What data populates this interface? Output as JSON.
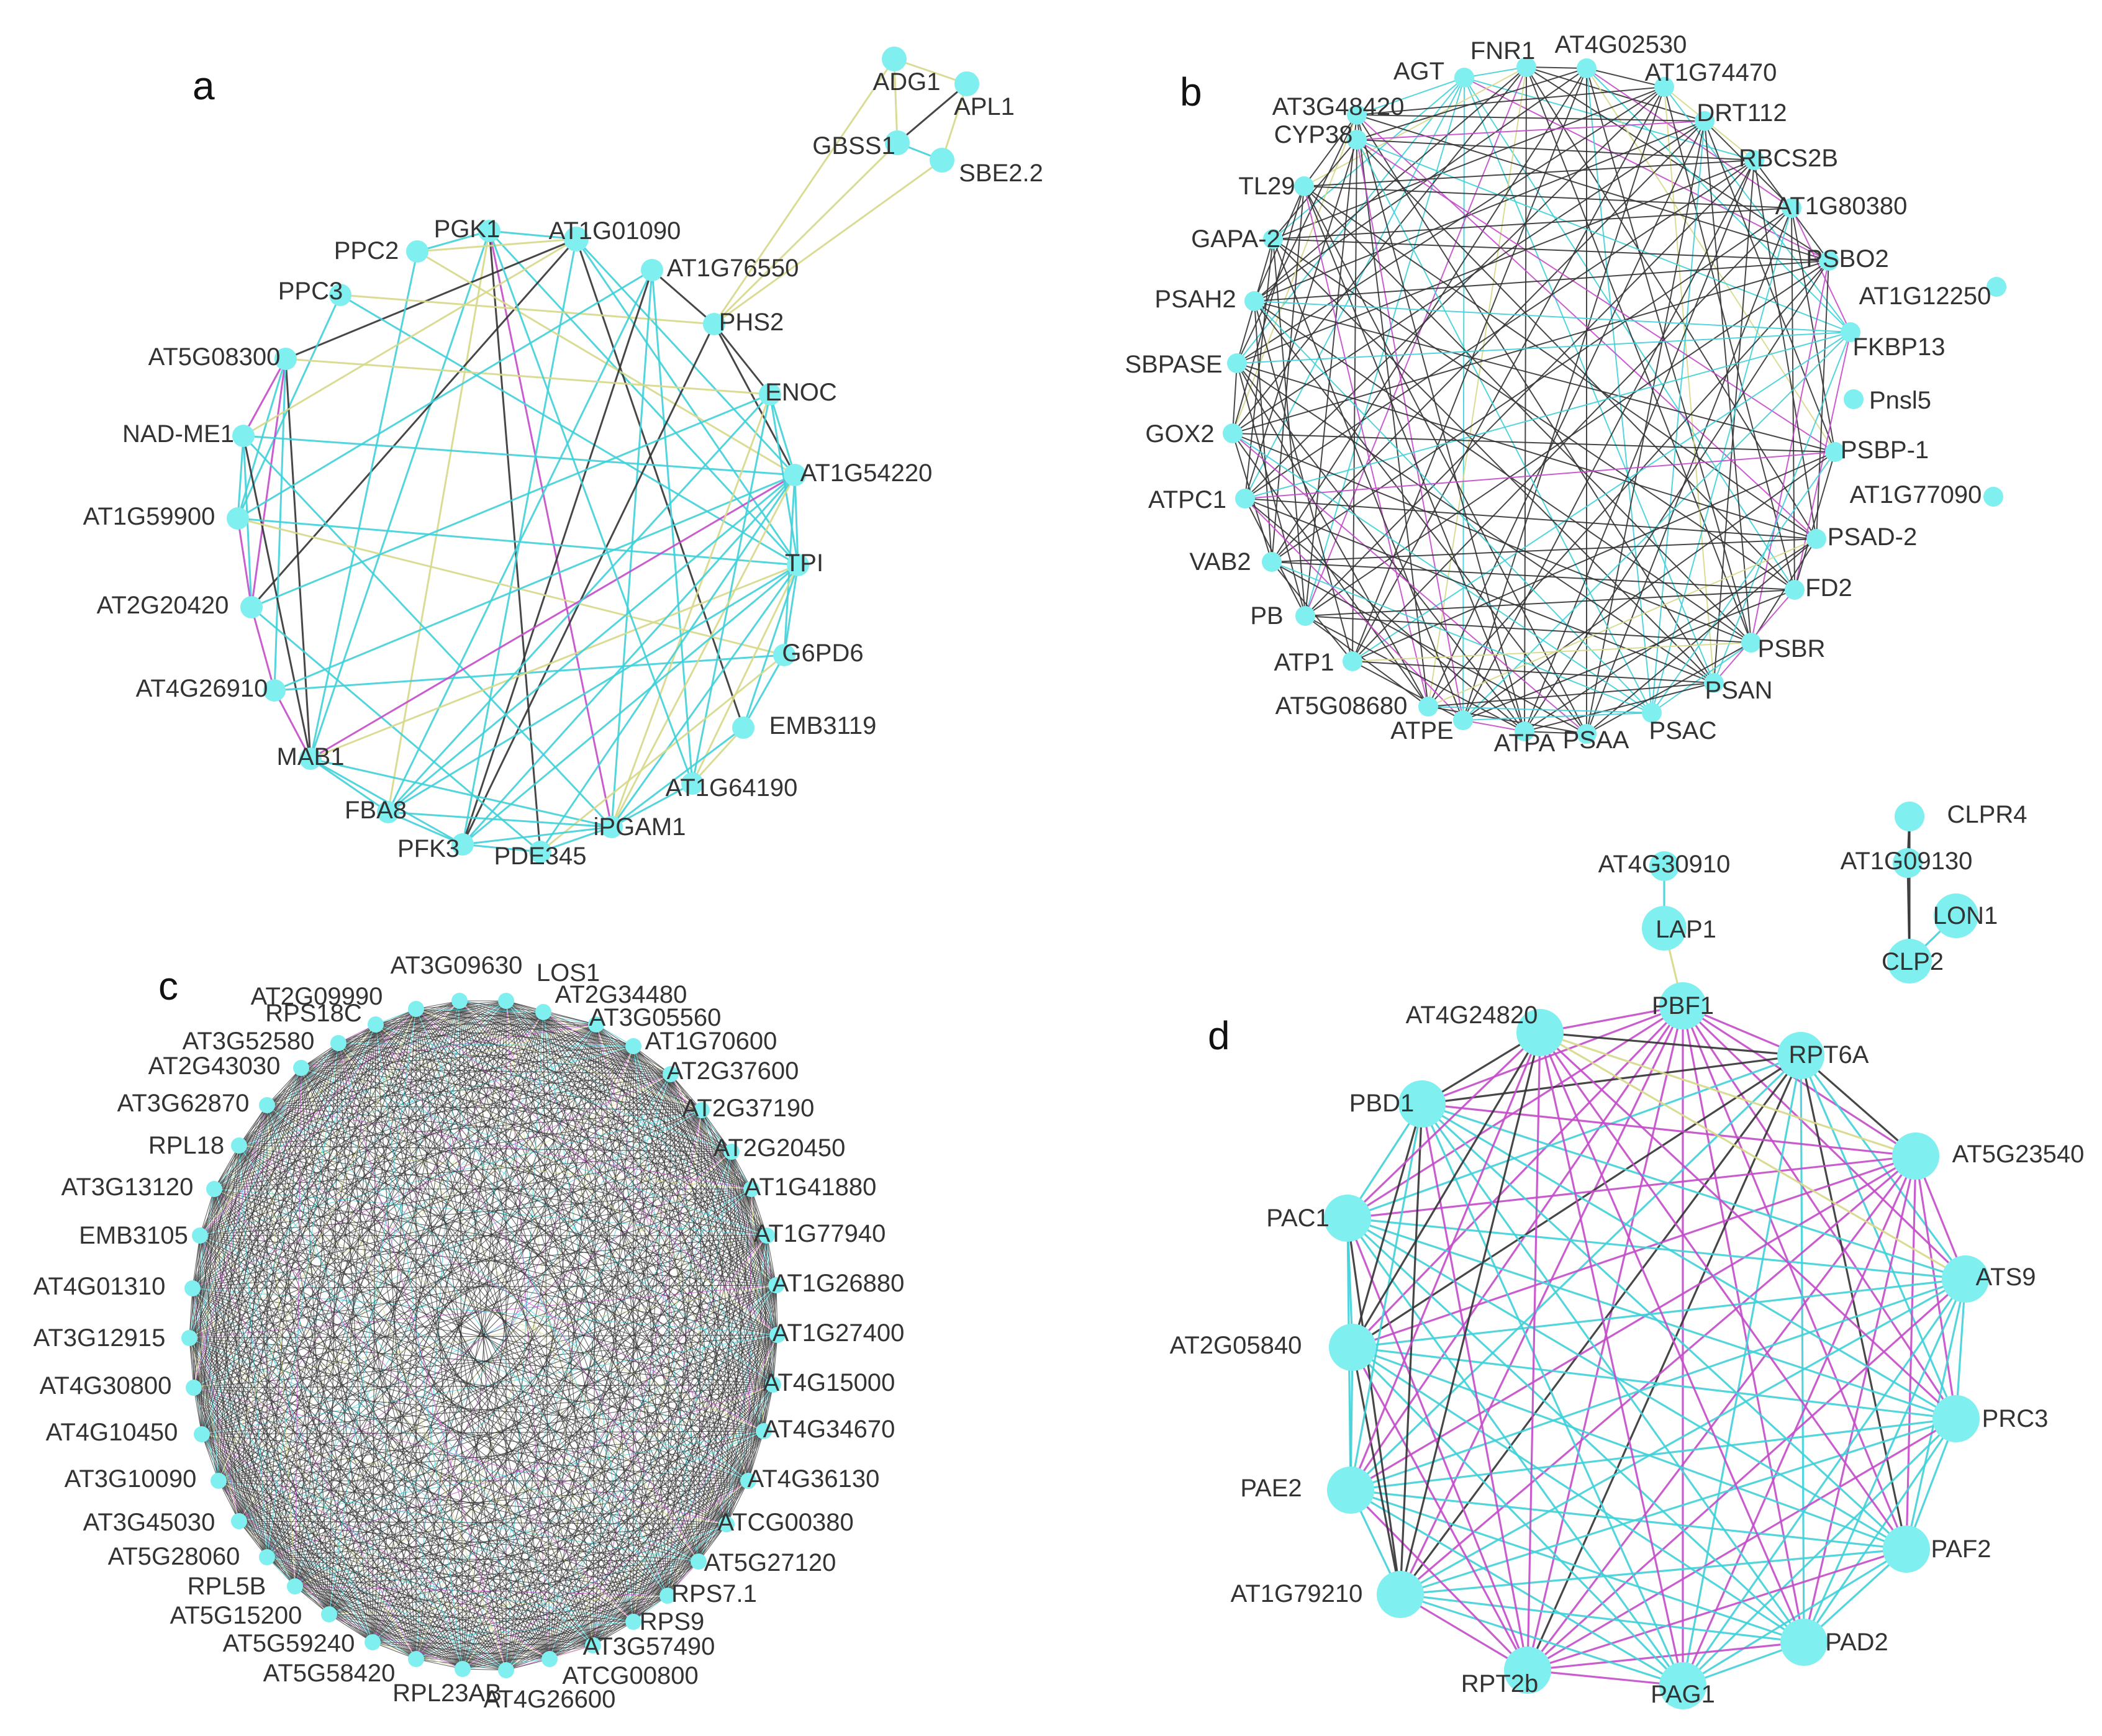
{
  "colors": {
    "node": "#7FEFEF",
    "edge_cyan": "#3FD0D8",
    "edge_yellow": "#D6D88A",
    "edge_magenta": "#C34BC9",
    "edge_dark": "#333333"
  },
  "panels": [
    {
      "id": "a",
      "letter": "a",
      "nodes": [
        {
          "id": "ADG1",
          "label": "ADG1"
        },
        {
          "id": "APL1",
          "label": "APL1"
        },
        {
          "id": "GBSS1",
          "label": "GBSS1"
        },
        {
          "id": "SBE2.2",
          "label": "SBE2.2"
        },
        {
          "id": "PGK1",
          "label": "PGK1"
        },
        {
          "id": "AT1G01090",
          "label": "AT1G01090"
        },
        {
          "id": "PPC2",
          "label": "PPC2"
        },
        {
          "id": "PPC3",
          "label": "PPC3"
        },
        {
          "id": "AT1G76550",
          "label": "AT1G76550"
        },
        {
          "id": "PHS2",
          "label": "PHS2"
        },
        {
          "id": "AT5G08300",
          "label": "AT5G08300"
        },
        {
          "id": "ENOC",
          "label": "ENOC"
        },
        {
          "id": "NAD-ME1",
          "label": "NAD-ME1"
        },
        {
          "id": "AT1G54220",
          "label": "AT1G54220"
        },
        {
          "id": "AT1G59900",
          "label": "AT1G59900"
        },
        {
          "id": "TPI",
          "label": "TPI"
        },
        {
          "id": "AT2G20420",
          "label": "AT2G20420"
        },
        {
          "id": "G6PD6",
          "label": "G6PD6"
        },
        {
          "id": "AT4G26910",
          "label": "AT4G26910"
        },
        {
          "id": "EMB3119",
          "label": "EMB3119"
        },
        {
          "id": "MAB1",
          "label": "MAB1"
        },
        {
          "id": "AT1G64190",
          "label": "AT1G64190"
        },
        {
          "id": "FBA8",
          "label": "FBA8"
        },
        {
          "id": "iPGAM1",
          "label": "iPGAM1"
        },
        {
          "id": "PFK3",
          "label": "PFK3"
        },
        {
          "id": "PDE345",
          "label": "PDE345"
        }
      ]
    },
    {
      "id": "b",
      "letter": "b",
      "nodes": [
        {
          "id": "AGT",
          "label": "AGT"
        },
        {
          "id": "FNR1",
          "label": "FNR1"
        },
        {
          "id": "AT4G02530",
          "label": "AT4G02530"
        },
        {
          "id": "AT1G74470",
          "label": "AT1G74470"
        },
        {
          "id": "AT3G48420",
          "label": "AT3G48420"
        },
        {
          "id": "DRT112",
          "label": "DRT112"
        },
        {
          "id": "CYP38",
          "label": "CYP38"
        },
        {
          "id": "RBCS2B",
          "label": "RBCS2B"
        },
        {
          "id": "TL29",
          "label": "TL29"
        },
        {
          "id": "AT1G80380",
          "label": "AT1G80380"
        },
        {
          "id": "GAPA-2",
          "label": "GAPA-2"
        },
        {
          "id": "PSBO2",
          "label": "PSBO2"
        },
        {
          "id": "AT1G12250",
          "label": "AT1G12250"
        },
        {
          "id": "PSAH2",
          "label": "PSAH2"
        },
        {
          "id": "FKBP13",
          "label": "FKBP13"
        },
        {
          "id": "SBPASE",
          "label": "SBPASE"
        },
        {
          "id": "Pnsl5",
          "label": "Pnsl5"
        },
        {
          "id": "GOX2",
          "label": "GOX2"
        },
        {
          "id": "PSBP-1",
          "label": "PSBP-1"
        },
        {
          "id": "ATPC1",
          "label": "ATPC1"
        },
        {
          "id": "AT1G77090",
          "label": "AT1G77090"
        },
        {
          "id": "PSAD-2",
          "label": "PSAD-2"
        },
        {
          "id": "VAB2",
          "label": "VAB2"
        },
        {
          "id": "FD2",
          "label": "FD2"
        },
        {
          "id": "PB",
          "label": "PB"
        },
        {
          "id": "PSBR",
          "label": "PSBR"
        },
        {
          "id": "ATP1",
          "label": "ATP1"
        },
        {
          "id": "PSAN",
          "label": "PSAN"
        },
        {
          "id": "AT5G08680",
          "label": "AT5G08680"
        },
        {
          "id": "PSAC",
          "label": "PSAC"
        },
        {
          "id": "ATPE",
          "label": "ATPE"
        },
        {
          "id": "ATPA",
          "label": "ATPA"
        },
        {
          "id": "PSAA",
          "label": "PSAA"
        }
      ]
    },
    {
      "id": "c",
      "letter": "c",
      "nodes": [
        {
          "id": "AT3G09630",
          "label": "AT3G09630"
        },
        {
          "id": "LOS1",
          "label": "LOS1"
        },
        {
          "id": "AT2G34480",
          "label": "AT2G34480"
        },
        {
          "id": "AT3G05560",
          "label": "AT3G05560"
        },
        {
          "id": "AT1G70600",
          "label": "AT1G70600"
        },
        {
          "id": "AT2G37600",
          "label": "AT2G37600"
        },
        {
          "id": "AT2G37190",
          "label": "AT2G37190"
        },
        {
          "id": "AT2G20450",
          "label": "AT2G20450"
        },
        {
          "id": "AT1G41880",
          "label": "AT1G41880"
        },
        {
          "id": "AT1G77940",
          "label": "AT1G77940"
        },
        {
          "id": "AT1G26880",
          "label": "AT1G26880"
        },
        {
          "id": "AT1G27400",
          "label": "AT1G27400"
        },
        {
          "id": "AT4G15000",
          "label": "AT4G15000"
        },
        {
          "id": "AT4G34670",
          "label": "AT4G34670"
        },
        {
          "id": "AT4G36130",
          "label": "AT4G36130"
        },
        {
          "id": "ATCG00380",
          "label": "ATCG00380"
        },
        {
          "id": "AT5G27120",
          "label": "AT5G27120"
        },
        {
          "id": "RPS7.1",
          "label": "RPS7.1"
        },
        {
          "id": "RPS9",
          "label": "RPS9"
        },
        {
          "id": "AT3G57490",
          "label": "AT3G57490"
        },
        {
          "id": "ATCG00800",
          "label": "ATCG00800"
        },
        {
          "id": "AT4G26600",
          "label": "AT4G26600"
        },
        {
          "id": "RPL23AB",
          "label": "RPL23AB"
        },
        {
          "id": "AT5G58420",
          "label": "AT5G58420"
        },
        {
          "id": "AT5G59240",
          "label": "AT5G59240"
        },
        {
          "id": "AT5G15200",
          "label": "AT5G15200"
        },
        {
          "id": "RPL5B",
          "label": "RPL5B"
        },
        {
          "id": "AT5G28060",
          "label": "AT5G28060"
        },
        {
          "id": "AT3G45030",
          "label": "AT3G45030"
        },
        {
          "id": "AT3G10090",
          "label": "AT3G10090"
        },
        {
          "id": "AT4G10450",
          "label": "AT4G10450"
        },
        {
          "id": "AT4G30800",
          "label": "AT4G30800"
        },
        {
          "id": "AT3G12915",
          "label": "AT3G12915"
        },
        {
          "id": "AT4G01310",
          "label": "AT4G01310"
        },
        {
          "id": "EMB3105",
          "label": "EMB3105"
        },
        {
          "id": "AT3G13120",
          "label": "AT3G13120"
        },
        {
          "id": "RPL18",
          "label": "RPL18"
        },
        {
          "id": "AT3G62870",
          "label": "AT3G62870"
        },
        {
          "id": "AT2G43030",
          "label": "AT2G43030"
        },
        {
          "id": "AT3G52580",
          "label": "AT3G52580"
        },
        {
          "id": "RPS18C",
          "label": "RPS18C"
        },
        {
          "id": "AT2G09990",
          "label": "AT2G09990"
        }
      ]
    },
    {
      "id": "d",
      "letter": "d",
      "nodes": [
        {
          "id": "AT4G30910",
          "label": "AT4G30910"
        },
        {
          "id": "LAP1",
          "label": "LAP1"
        },
        {
          "id": "CLPR4",
          "label": "CLPR4"
        },
        {
          "id": "AT1G09130",
          "label": "AT1G09130"
        },
        {
          "id": "LON1",
          "label": "LON1"
        },
        {
          "id": "CLP2",
          "label": "CLP2"
        },
        {
          "id": "PBF1",
          "label": "PBF1"
        },
        {
          "id": "AT4G24820",
          "label": "AT4G24820"
        },
        {
          "id": "RPT6A",
          "label": "RPT6A"
        },
        {
          "id": "PBD1",
          "label": "PBD1"
        },
        {
          "id": "AT5G23540",
          "label": "AT5G23540"
        },
        {
          "id": "PAC1",
          "label": "PAC1"
        },
        {
          "id": "ATS9",
          "label": "ATS9"
        },
        {
          "id": "AT2G05840",
          "label": "AT2G05840"
        },
        {
          "id": "PRC3",
          "label": "PRC3"
        },
        {
          "id": "PAE2",
          "label": "PAE2"
        },
        {
          "id": "PAF2",
          "label": "PAF2"
        },
        {
          "id": "AT1G79210",
          "label": "AT1G79210"
        },
        {
          "id": "PAD2",
          "label": "PAD2"
        },
        {
          "id": "RPT2b",
          "label": "RPT2b"
        },
        {
          "id": "PAG1",
          "label": "PAG1"
        }
      ]
    }
  ]
}
